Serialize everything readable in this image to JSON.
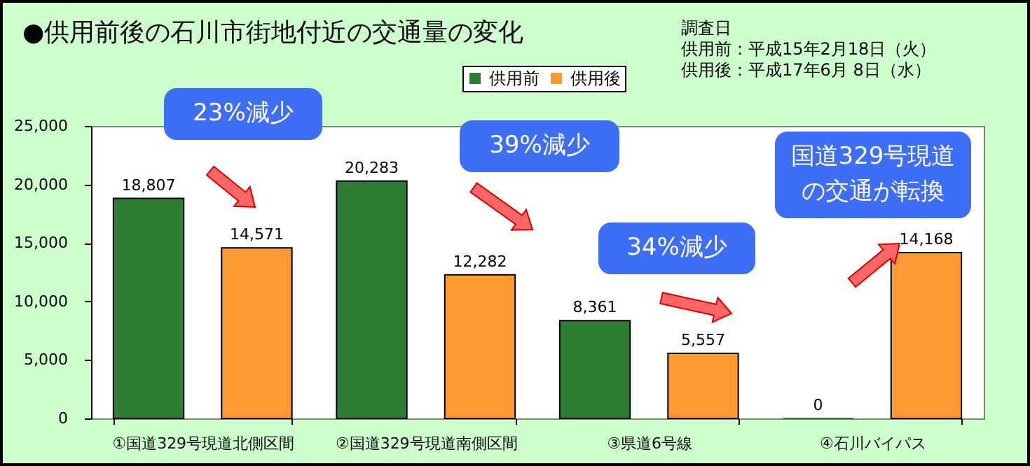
{
  "chart_data": {
    "type": "bar",
    "title": "●供用前後の石川市街地付近の交通量の変化",
    "categories": [
      "①国道329号現道北側区間",
      "②国道329号現道南側区間",
      "③県道6号線",
      "④石川バイパス"
    ],
    "series": [
      {
        "name": "供用前",
        "color": "#2e7d32",
        "values": [
          18807,
          20283,
          8361,
          0
        ],
        "value_labels": [
          "18,807",
          "20,283",
          "8,361",
          "0"
        ]
      },
      {
        "name": "供用後",
        "color": "#ff9933",
        "values": [
          14571,
          12282,
          5557,
          14168
        ],
        "value_labels": [
          "14,571",
          "12,282",
          "5,557",
          "14,168"
        ]
      }
    ],
    "ylim": [
      0,
      25000
    ],
    "yticks": [
      0,
      {
        "value": 5000,
        "label": "5,000"
      },
      {
        "value": 10000,
        "label": "10,000"
      },
      {
        "value": 15000,
        "label": "15,000"
      },
      {
        "value": 20000,
        "label": "20,000"
      },
      {
        "value": 25000,
        "label": "25,000"
      }
    ],
    "legend": "top",
    "annotations": [
      "調査日",
      "供用前：平成15年2月18日（火）",
      "供用後：平成17年6月 8日（水）",
      "23%減少",
      "39%減少",
      "34%減少",
      "国道329号現道の交通が転換"
    ]
  }
}
